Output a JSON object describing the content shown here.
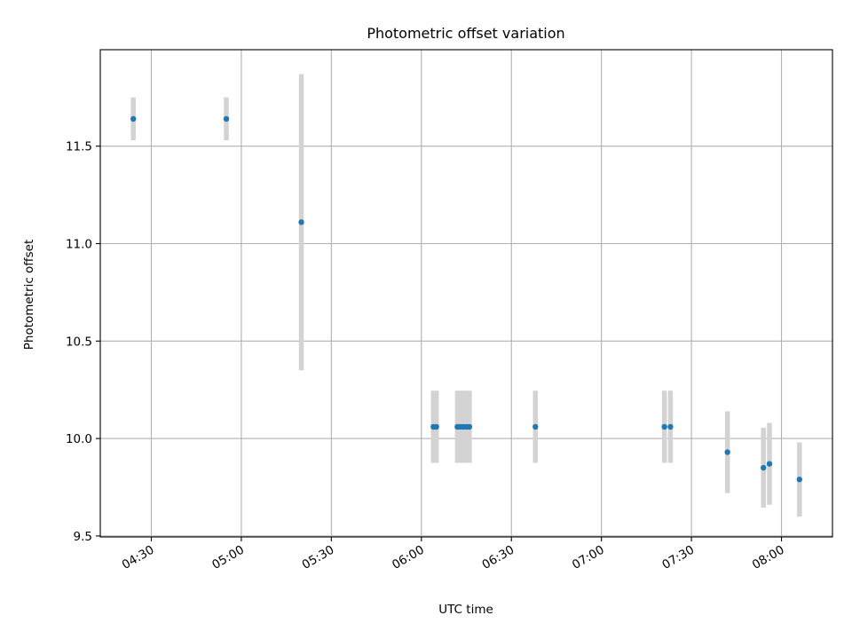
{
  "chart_data": {
    "type": "scatter",
    "title": "Photometric offset variation",
    "xlabel": "UTC time",
    "ylabel": "Photometric offset",
    "xlim": [
      "04:13",
      "08:17"
    ],
    "ylim": [
      9.495,
      11.995
    ],
    "x_ticks": [
      "04:30",
      "05:00",
      "05:30",
      "06:00",
      "06:30",
      "07:00",
      "07:30",
      "08:00"
    ],
    "y_ticks": [
      9.5,
      10.0,
      10.5,
      11.0,
      11.5
    ],
    "grid": true,
    "colors": {
      "points": "#1f77b4",
      "errorbars": "#d3d3d3",
      "grid": "#b0b0b0"
    },
    "points": [
      {
        "x": "04:24",
        "y": 11.64,
        "yerr": 0.11
      },
      {
        "x": "04:55",
        "y": 11.64,
        "yerr": 0.11
      },
      {
        "x": "05:20",
        "y": 11.11,
        "yerr": 0.76
      },
      {
        "x": "06:04",
        "y": 10.06,
        "yerr": 0.185
      },
      {
        "x": "06:05",
        "y": 10.06,
        "yerr": 0.185
      },
      {
        "x": "06:12",
        "y": 10.06,
        "yerr": 0.185
      },
      {
        "x": "06:13",
        "y": 10.06,
        "yerr": 0.185
      },
      {
        "x": "06:14",
        "y": 10.06,
        "yerr": 0.185
      },
      {
        "x": "06:15",
        "y": 10.06,
        "yerr": 0.185
      },
      {
        "x": "06:16",
        "y": 10.06,
        "yerr": 0.185
      },
      {
        "x": "06:38",
        "y": 10.06,
        "yerr": 0.185
      },
      {
        "x": "07:21",
        "y": 10.06,
        "yerr": 0.185
      },
      {
        "x": "07:23",
        "y": 10.06,
        "yerr": 0.185
      },
      {
        "x": "07:42",
        "y": 9.93,
        "yerr": 0.21
      },
      {
        "x": "07:54",
        "y": 9.85,
        "yerr": 0.205
      },
      {
        "x": "07:56",
        "y": 9.87,
        "yerr": 0.21
      },
      {
        "x": "08:06",
        "y": 9.79,
        "yerr": 0.19
      }
    ]
  }
}
